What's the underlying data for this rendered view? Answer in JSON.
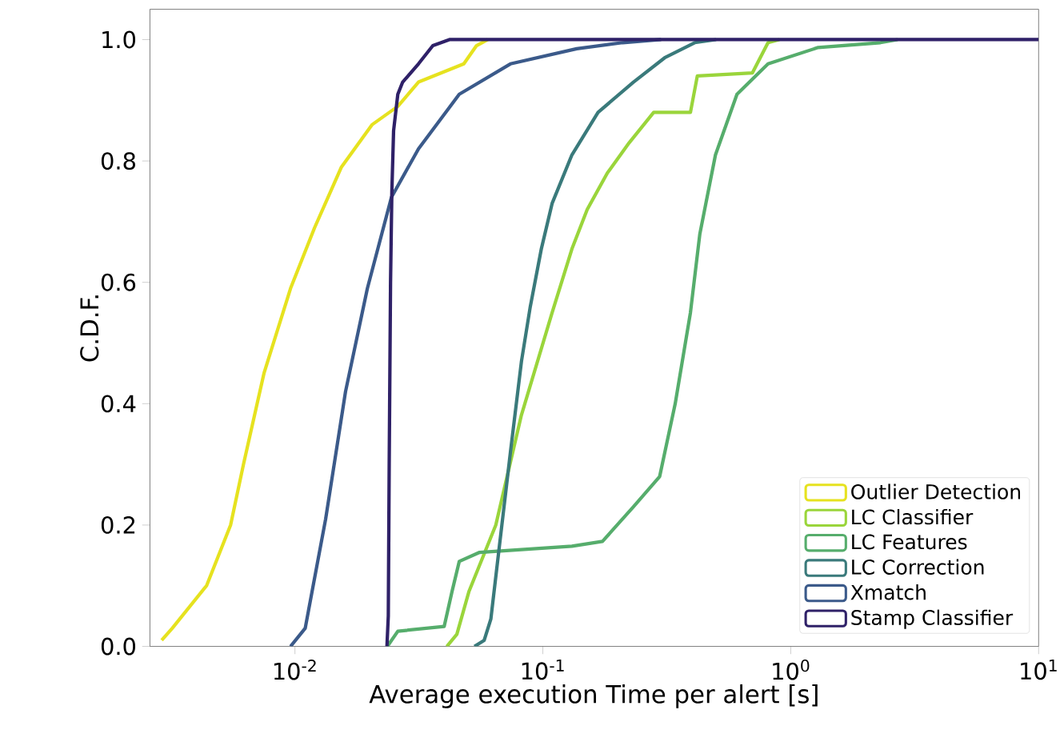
{
  "chart_data": {
    "type": "line",
    "xlabel": "Average execution Time per alert [s]",
    "ylabel": "C.D.F.",
    "log": "x",
    "xlim": [
      0.0026,
      10
    ],
    "ylim": [
      0,
      1.05
    ],
    "xticks": [
      {
        "value": 0.01,
        "label": "10$^{-2}$"
      },
      {
        "value": 0.1,
        "label": "10$^{-1}$"
      },
      {
        "value": 1,
        "label": "10$^{0}$"
      },
      {
        "value": 10,
        "label": "10$^{1}$"
      }
    ],
    "yticks": [
      {
        "value": 0,
        "label": "0.0"
      },
      {
        "value": 0.2,
        "label": "0.2"
      },
      {
        "value": 0.4,
        "label": "0.4"
      },
      {
        "value": 0.6,
        "label": "0.6"
      },
      {
        "value": 0.8,
        "label": "0.8"
      },
      {
        "value": 1,
        "label": "1.0"
      }
    ],
    "legend": "bottom right",
    "grid": false,
    "series": [
      {
        "name": "Outlier Detection",
        "color": "#e6e21f",
        "x": [
          0.0029,
          0.0032,
          0.0044,
          0.0055,
          0.0062,
          0.0075,
          0.0096,
          0.012,
          0.0154,
          0.0205,
          0.026,
          0.0315,
          0.048,
          0.054,
          0.06
        ],
        "values": [
          0.01,
          0.03,
          0.1,
          0.2,
          0.3,
          0.45,
          0.59,
          0.69,
          0.79,
          0.86,
          0.89,
          0.93,
          0.96,
          0.99,
          1.0
        ]
      },
      {
        "name": "LC Classifier",
        "color": "#9ad53b",
        "x": [
          0.041,
          0.045,
          0.0503,
          0.0646,
          0.0818,
          0.109,
          0.131,
          0.151,
          0.182,
          0.223,
          0.28,
          0.394,
          0.42,
          0.7,
          0.81,
          0.9
        ],
        "values": [
          0,
          0.02,
          0.09,
          0.2,
          0.38,
          0.55,
          0.655,
          0.72,
          0.78,
          0.83,
          0.88,
          0.88,
          0.94,
          0.945,
          0.995,
          1.0
        ]
      },
      {
        "name": "LC Features",
        "color": "#56ad6c",
        "x": [
          0.0236,
          0.026,
          0.04,
          0.043,
          0.046,
          0.0556,
          0.131,
          0.174,
          0.232,
          0.296,
          0.342,
          0.394,
          0.43,
          0.497,
          0.607,
          0.81,
          1.29,
          2.3,
          2.7
        ],
        "values": [
          0,
          0.025,
          0.033,
          0.09,
          0.14,
          0.155,
          0.165,
          0.173,
          0.23,
          0.28,
          0.4,
          0.55,
          0.68,
          0.81,
          0.91,
          0.96,
          0.987,
          0.995,
          1.0
        ]
      },
      {
        "name": "LC Correction",
        "color": "#3a7a7b",
        "x": [
          0.053,
          0.058,
          0.0617,
          0.067,
          0.074,
          0.082,
          0.089,
          0.0986,
          0.109,
          0.131,
          0.167,
          0.232,
          0.31,
          0.41,
          0.5
        ],
        "values": [
          0,
          0.01,
          0.045,
          0.17,
          0.32,
          0.47,
          0.56,
          0.655,
          0.73,
          0.81,
          0.88,
          0.93,
          0.97,
          0.995,
          1.0
        ]
      },
      {
        "name": "Xmatch",
        "color": "#3b5a8a",
        "x": [
          0.0096,
          0.011,
          0.0133,
          0.016,
          0.0196,
          0.0245,
          0.0315,
          0.046,
          0.074,
          0.137,
          0.21,
          0.3
        ],
        "values": [
          0,
          0.03,
          0.21,
          0.42,
          0.59,
          0.74,
          0.82,
          0.91,
          0.96,
          0.985,
          0.995,
          1.0
        ]
      },
      {
        "name": "Stamp Classifier",
        "color": "#2f2168",
        "x": [
          0.0235,
          0.0238,
          0.024,
          0.0243,
          0.0246,
          0.025,
          0.026,
          0.0272,
          0.0315,
          0.036,
          0.042,
          10
        ],
        "values": [
          0,
          0.05,
          0.3,
          0.6,
          0.75,
          0.85,
          0.91,
          0.93,
          0.96,
          0.99,
          1.0,
          1.0
        ]
      }
    ]
  }
}
